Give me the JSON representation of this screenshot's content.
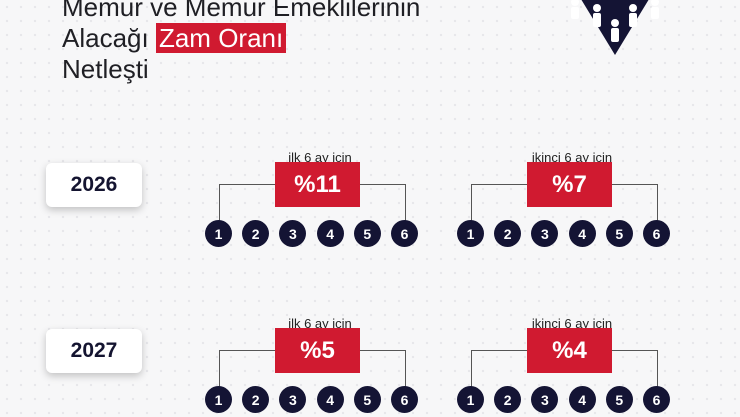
{
  "title": {
    "line1": "Memur ve Memur Emeklilerinin",
    "line2_prefix": "Alacağı",
    "line2_highlight": "Zam Oranı",
    "line3": "Netleşti"
  },
  "colors": {
    "accent": "#d01a30",
    "navy": "#141434"
  },
  "logo_icon": "people-group-diamond-icon",
  "years": [
    {
      "year": "2026",
      "first": {
        "label": "ilk 6 ay için",
        "rate": "%11"
      },
      "second": {
        "label": "ikinci 6 ay için",
        "rate": "%7"
      }
    },
    {
      "year": "2027",
      "first": {
        "label": "ilk 6 ay için",
        "rate": "%5"
      },
      "second": {
        "label": "ikinci 6 ay için",
        "rate": "%4"
      }
    }
  ],
  "months": [
    "1",
    "2",
    "3",
    "4",
    "5",
    "6"
  ]
}
